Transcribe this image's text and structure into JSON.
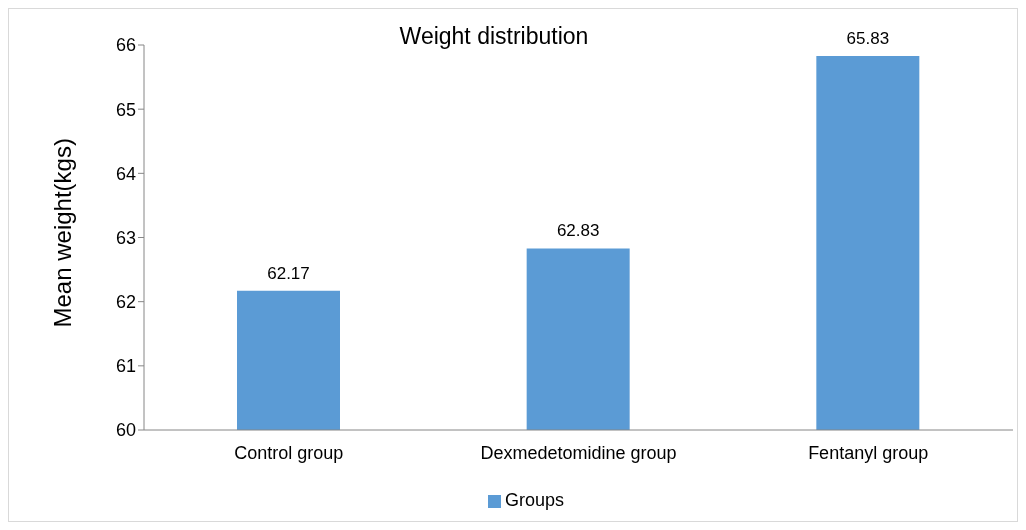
{
  "chart_data": {
    "type": "bar",
    "title": "Weight distribution",
    "ylabel": "Mean weight(kgs)",
    "categories": [
      "Control group",
      "Dexmedetomidine group",
      "Fentanyl group"
    ],
    "series": [
      {
        "name": "Groups",
        "color": "#5b9bd5",
        "values": [
          62.17,
          62.83,
          65.83
        ]
      }
    ],
    "ylim": [
      60,
      66
    ],
    "yticks": [
      60,
      61,
      62,
      63,
      64,
      65,
      66
    ],
    "grid": false,
    "legend": "bottom",
    "data_labels": true
  }
}
